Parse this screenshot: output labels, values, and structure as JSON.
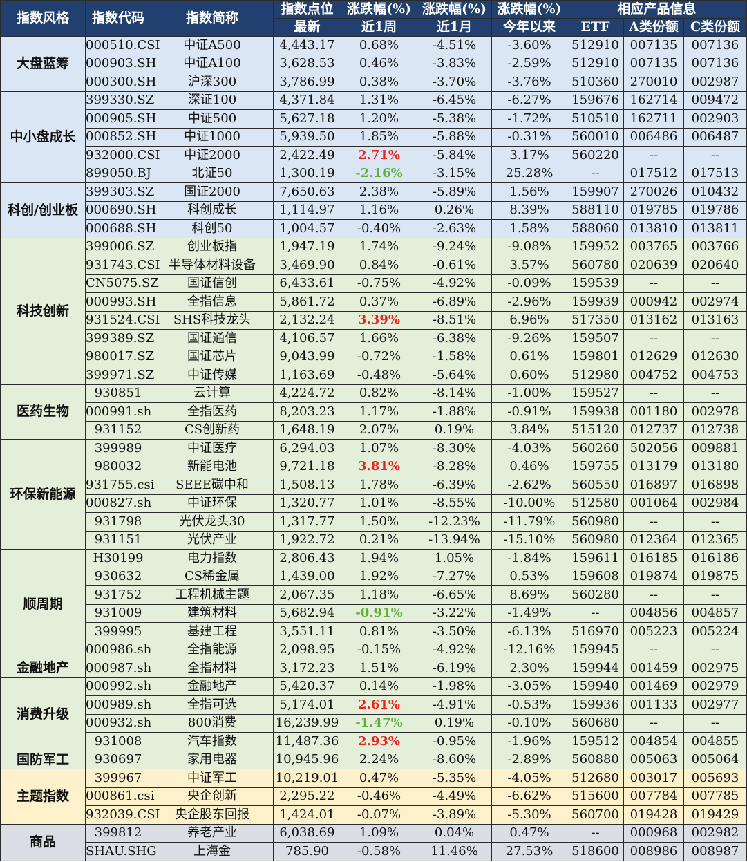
{
  "header": {
    "col_style": "指数风格",
    "col_code": "指数代码",
    "col_name": "指数简称",
    "col_point_top": "指数点位",
    "col_point_bottom": "最新",
    "col_week_top": "涨跌幅(%)",
    "col_week_bottom": "近1周",
    "col_month_top": "涨跌幅(%)",
    "col_month_bottom": "近1月",
    "col_ytd_top": "涨跌幅(%)",
    "col_ytd_bottom": "今年以来",
    "col_product_top": "相应产品信息",
    "col_etf": "ETF",
    "col_a": "A类份额",
    "col_c": "C类份额"
  },
  "colors": {
    "header_bg": "#21406f",
    "blue_section": "#dae6f3",
    "green_section": "#e3efd9",
    "yellow_section": "#fdf1cc",
    "gray_section": "#dadde4",
    "up_highlight": "#e8231f",
    "down_highlight": "#5fae3c"
  },
  "groups": [
    {
      "label": "大盘蓝筹",
      "theme": "blue",
      "rows": [
        [
          "000510.CSI",
          "中证A500",
          "4,443.17",
          "0.68%",
          "-4.51%",
          "-3.60%",
          "512910",
          "007135",
          "007136",
          ""
        ],
        [
          "000903.SH",
          "中证A100",
          "3,628.53",
          "0.46%",
          "-3.83%",
          "-2.59%",
          "512910",
          "007135",
          "007136",
          ""
        ],
        [
          "000300.SH",
          "沪深300",
          "3,786.99",
          "0.38%",
          "-3.70%",
          "-3.76%",
          "510360",
          "270010",
          "002987",
          ""
        ]
      ]
    },
    {
      "label": "中小盘成长",
      "theme": "blue",
      "rows": [
        [
          "399330.SZ",
          "深证100",
          "4,371.84",
          "1.31%",
          "-6.45%",
          "-6.27%",
          "159676",
          "162714",
          "009472",
          ""
        ],
        [
          "000905.SH",
          "中证500",
          "5,627.18",
          "1.20%",
          "-5.38%",
          "-1.72%",
          "510510",
          "162711",
          "002903",
          ""
        ],
        [
          "000852.SH",
          "中证1000",
          "5,939.50",
          "1.85%",
          "-5.88%",
          "-0.31%",
          "560010",
          "006486",
          "006487",
          ""
        ],
        [
          "932000.CSI",
          "中证2000",
          "2,422.49",
          "2.71%",
          "-5.84%",
          "3.17%",
          "560220",
          "--",
          "--",
          "red"
        ],
        [
          "899050.BJ",
          "北证50",
          "1,300.19",
          "-2.16%",
          "-3.15%",
          "25.28%",
          "--",
          "017512",
          "017513",
          "green"
        ]
      ]
    },
    {
      "label": "科创/创业板",
      "theme": "blue",
      "rows": [
        [
          "399303.SZ",
          "国证2000",
          "7,650.63",
          "2.38%",
          "-5.89%",
          "1.56%",
          "159907",
          "270026",
          "010432",
          ""
        ],
        [
          "000690.SH",
          "科创成长",
          "1,114.97",
          "1.16%",
          "0.26%",
          "8.39%",
          "588110",
          "019785",
          "019786",
          ""
        ],
        [
          "000688.SH",
          "科创50",
          "1,004.57",
          "-0.40%",
          "-2.63%",
          "1.58%",
          "588060",
          "013810",
          "013811",
          ""
        ]
      ]
    },
    {
      "label": "科技创新",
      "theme": "green",
      "rows": [
        [
          "399006.SZ",
          "创业板指",
          "1,947.19",
          "1.74%",
          "-9.24%",
          "-9.08%",
          "159952",
          "003765",
          "003766",
          ""
        ],
        [
          "931743.CSI",
          "半导体材料设备",
          "3,469.90",
          "0.84%",
          "-0.61%",
          "3.57%",
          "560780",
          "020639",
          "020640",
          ""
        ],
        [
          "CN5075.SZ",
          "国证信创",
          "6,433.61",
          "-0.75%",
          "-4.92%",
          "-0.09%",
          "159539",
          "--",
          "--",
          ""
        ],
        [
          "000993.SH",
          "全指信息",
          "5,861.72",
          "0.37%",
          "-6.89%",
          "-2.96%",
          "159939",
          "000942",
          "002974",
          ""
        ],
        [
          "931524.CSI",
          "SHS科技龙头",
          "2,132.24",
          "3.39%",
          "-8.51%",
          "6.96%",
          "517350",
          "013162",
          "013163",
          "red"
        ],
        [
          "399389.SZ",
          "国证通信",
          "4,106.57",
          "1.66%",
          "-6.38%",
          "-9.26%",
          "159507",
          "--",
          "--",
          ""
        ],
        [
          "980017.SZ",
          "国证芯片",
          "9,043.99",
          "-0.72%",
          "-1.58%",
          "0.61%",
          "159801",
          "012629",
          "012630",
          ""
        ],
        [
          "399971.SZ",
          "中证传媒",
          "1,163.69",
          "-0.48%",
          "-5.64%",
          "0.60%",
          "512980",
          "004752",
          "004753",
          ""
        ]
      ]
    },
    {
      "label": "医药生物",
      "theme": "green",
      "rows": [
        [
          "930851",
          "云计算",
          "4,224.72",
          "0.82%",
          "-8.14%",
          "-1.00%",
          "159527",
          "--",
          "--",
          ""
        ],
        [
          "000991.sh",
          "全指医药",
          "8,203.23",
          "1.17%",
          "-1.88%",
          "-0.91%",
          "159938",
          "001180",
          "002978",
          ""
        ],
        [
          "931152",
          "CS创新药",
          "1,648.19",
          "2.07%",
          "0.19%",
          "3.84%",
          "515120",
          "012737",
          "012738",
          ""
        ]
      ]
    },
    {
      "label": "环保新能源",
      "theme": "green",
      "rows": [
        [
          "399989",
          "中证医疗",
          "6,294.03",
          "1.07%",
          "-8.30%",
          "-4.03%",
          "560260",
          "502056",
          "009881",
          ""
        ],
        [
          "980032",
          "新能电池",
          "9,721.18",
          "3.81%",
          "-8.28%",
          "0.46%",
          "159755",
          "013179",
          "013180",
          "red"
        ],
        [
          "931755.csi",
          "SEEE碳中和",
          "1,508.13",
          "1.78%",
          "-6.39%",
          "-2.62%",
          "560550",
          "016897",
          "016898",
          ""
        ],
        [
          "000827.sh",
          "中证环保",
          "1,320.77",
          "1.01%",
          "-8.55%",
          "-10.00%",
          "512580",
          "001064",
          "002984",
          ""
        ],
        [
          "931798",
          "光伏龙头30",
          "1,317.77",
          "1.50%",
          "-12.23%",
          "-11.79%",
          "560980",
          "--",
          "--",
          ""
        ],
        [
          "931151",
          "光伏产业",
          "1,922.72",
          "0.21%",
          "-13.94%",
          "-15.10%",
          "560980",
          "012364",
          "012365",
          ""
        ]
      ]
    },
    {
      "label": "顺周期",
      "theme": "green",
      "rows": [
        [
          "H30199",
          "电力指数",
          "2,806.43",
          "1.94%",
          "1.05%",
          "-1.84%",
          "159611",
          "016185",
          "016186",
          ""
        ],
        [
          "930632",
          "CS稀金属",
          "1,439.00",
          "1.92%",
          "-7.27%",
          "0.53%",
          "159608",
          "019874",
          "019875",
          ""
        ],
        [
          "931752",
          "工程机械主题",
          "2,067.35",
          "1.18%",
          "-6.65%",
          "8.69%",
          "560280",
          "--",
          "--",
          ""
        ],
        [
          "931009",
          "建筑材料",
          "5,682.94",
          "-0.91%",
          "-3.22%",
          "-1.49%",
          "--",
          "004856",
          "004857",
          "green"
        ],
        [
          "399995",
          "基建工程",
          "3,551.11",
          "0.81%",
          "-3.50%",
          "-6.13%",
          "516970",
          "005223",
          "005224",
          ""
        ],
        [
          "000986.sh",
          "全指能源",
          "2,098.95",
          "-0.15%",
          "-4.92%",
          "-12.16%",
          "159945",
          "--",
          "--",
          ""
        ]
      ]
    },
    {
      "label": "金融地产",
      "theme": "green",
      "rows": [
        [
          "000987.sh",
          "全指材料",
          "3,172.23",
          "1.51%",
          "-6.19%",
          "2.30%",
          "159944",
          "001459",
          "002975",
          ""
        ]
      ]
    },
    {
      "label": "消费升级",
      "theme": "green",
      "rows": [
        [
          "000992.sh",
          "金融地产",
          "5,420.37",
          "0.14%",
          "-1.98%",
          "-3.05%",
          "159940",
          "001469",
          "002979",
          ""
        ],
        [
          "000989.sh",
          "全指可选",
          "5,174.01",
          "2.61%",
          "-4.91%",
          "-0.53%",
          "159936",
          "001133",
          "002977",
          "red"
        ],
        [
          "000932.sh",
          "800消费",
          "16,239.99",
          "-1.47%",
          "0.19%",
          "-0.10%",
          "560680",
          "--",
          "--",
          "green"
        ],
        [
          "931008",
          "汽车指数",
          "11,487.36",
          "2.93%",
          "-0.95%",
          "-1.96%",
          "159512",
          "004854",
          "004855",
          "red"
        ]
      ]
    },
    {
      "label": "国防军工",
      "theme": "green",
      "rows": [
        [
          "930697",
          "家用电器",
          "10,945.96",
          "2.24%",
          "-8.60%",
          "-2.89%",
          "560880",
          "005063",
          "005064",
          ""
        ]
      ]
    },
    {
      "label": "主题指数",
      "theme": "yellow",
      "rows": [
        [
          "399967",
          "中证军工",
          "10,219.01",
          "0.47%",
          "-5.35%",
          "-4.05%",
          "512680",
          "003017",
          "005693",
          ""
        ],
        [
          "000861.csi",
          "央企创新",
          "2,295.22",
          "-0.46%",
          "-4.49%",
          "-6.62%",
          "515600",
          "007784",
          "007785",
          ""
        ],
        [
          "932039.CSI",
          "央企股东回报",
          "1,424.01",
          "-0.07%",
          "-3.89%",
          "-5.30%",
          "560700",
          "019428",
          "019429",
          ""
        ]
      ]
    },
    {
      "label": "商品",
      "theme": "gray",
      "rows": [
        [
          "399812",
          "养老产业",
          "6,038.69",
          "1.09%",
          "0.04%",
          "0.47%",
          "--",
          "000968",
          "002982",
          ""
        ],
        [
          "SHAU.SHG",
          "上海金",
          "785.90",
          "-0.58%",
          "11.46%",
          "27.53%",
          "518600",
          "008986",
          "008987",
          ""
        ]
      ]
    }
  ]
}
